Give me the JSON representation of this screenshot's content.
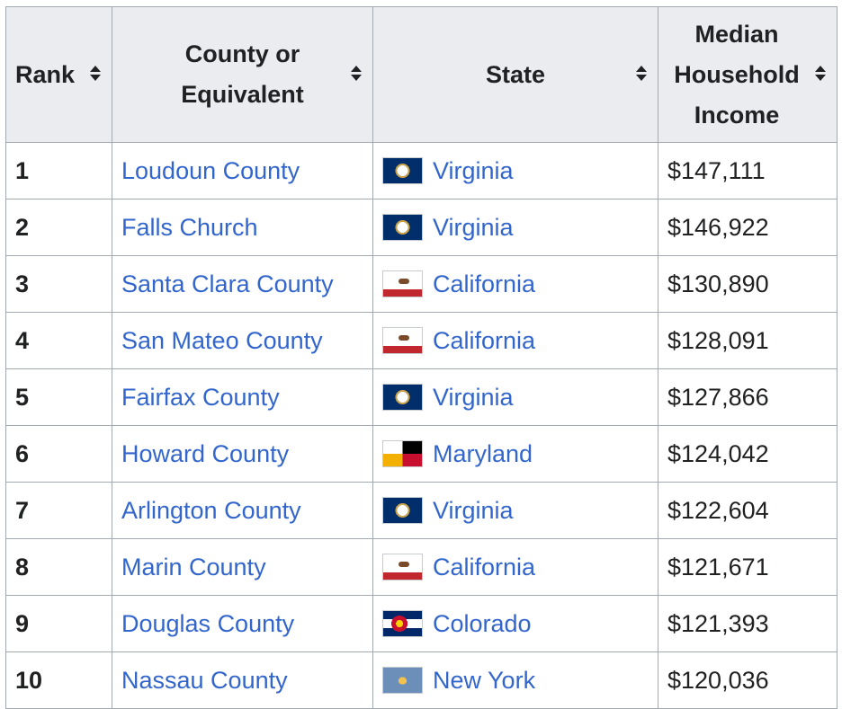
{
  "header": {
    "rank": "Rank",
    "county_line1": "County or",
    "county_line2": "Equivalent",
    "state": "State",
    "income_line1": "Median",
    "income_line2": "Household",
    "income_line3": "Income"
  },
  "rows": [
    {
      "rank": "1",
      "county": "Loudoun County",
      "state": "Virginia",
      "flag": "virginia-flag-icon",
      "income": "$147,111"
    },
    {
      "rank": "2",
      "county": "Falls Church",
      "state": "Virginia",
      "flag": "virginia-flag-icon",
      "income": "$146,922"
    },
    {
      "rank": "3",
      "county": "Santa Clara County",
      "state": "California",
      "flag": "california-flag-icon",
      "income": "$130,890"
    },
    {
      "rank": "4",
      "county": "San Mateo County",
      "state": "California",
      "flag": "california-flag-icon",
      "income": "$128,091"
    },
    {
      "rank": "5",
      "county": "Fairfax County",
      "state": "Virginia",
      "flag": "virginia-flag-icon",
      "income": "$127,866"
    },
    {
      "rank": "6",
      "county": "Howard County",
      "state": "Maryland",
      "flag": "maryland-flag-icon",
      "income": "$124,042"
    },
    {
      "rank": "7",
      "county": "Arlington County",
      "state": "Virginia",
      "flag": "virginia-flag-icon",
      "income": "$122,604"
    },
    {
      "rank": "8",
      "county": "Marin County",
      "state": "California",
      "flag": "california-flag-icon",
      "income": "$121,671"
    },
    {
      "rank": "9",
      "county": "Douglas County",
      "state": "Colorado",
      "flag": "colorado-flag-icon",
      "income": "$121,393"
    },
    {
      "rank": "10",
      "county": "Nassau County",
      "state": "New York",
      "flag": "new-york-flag-icon",
      "income": "$120,036"
    }
  ],
  "colors": {
    "link": "#3366cc",
    "header_bg": "#eaecf0",
    "border": "#a2a9b1",
    "text": "#202122"
  }
}
